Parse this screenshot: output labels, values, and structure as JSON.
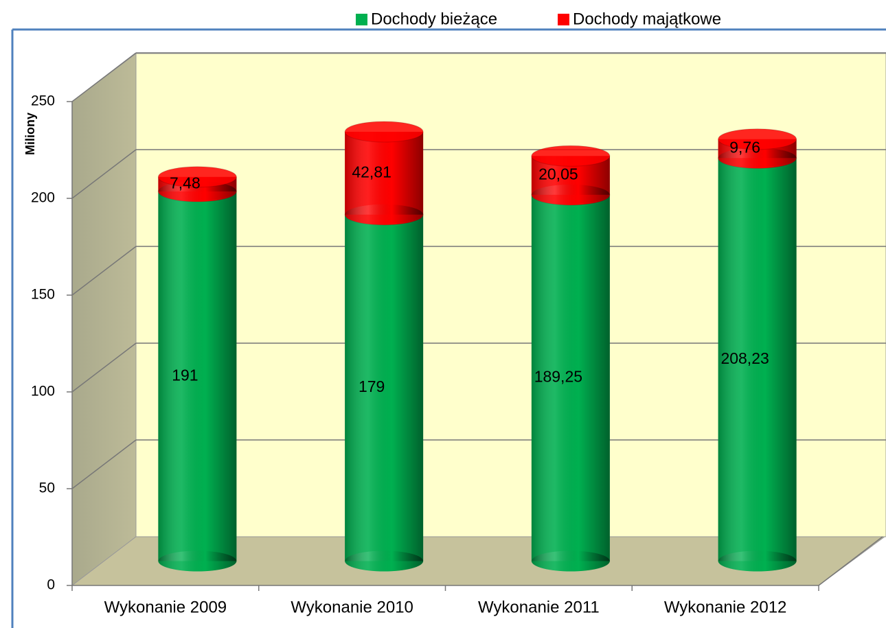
{
  "chart_data": {
    "type": "bar3d-stacked-cylinder",
    "y_axis_label": "Miliony",
    "categories": [
      "Wykonanie 2009",
      "Wykonanie  2010",
      "Wykonanie 2011",
      "Wykonanie 2012"
    ],
    "series": [
      {
        "name": "Dochody bieżące",
        "color": "#00b050",
        "values": [
          191,
          179,
          189.25,
          208.23
        ],
        "value_labels": [
          "191",
          "179",
          "189,25",
          "208,23"
        ]
      },
      {
        "name": "Dochody majątkowe",
        "color": "#ff0000",
        "values": [
          7.48,
          42.81,
          20.05,
          9.76
        ],
        "value_labels": [
          "7,48",
          "42,81",
          "20,05",
          "9,76"
        ]
      }
    ],
    "ylim": [
      0,
      250
    ],
    "yticks": [
      0,
      50,
      100,
      150,
      200,
      250
    ],
    "grid": true,
    "legend": "top"
  }
}
